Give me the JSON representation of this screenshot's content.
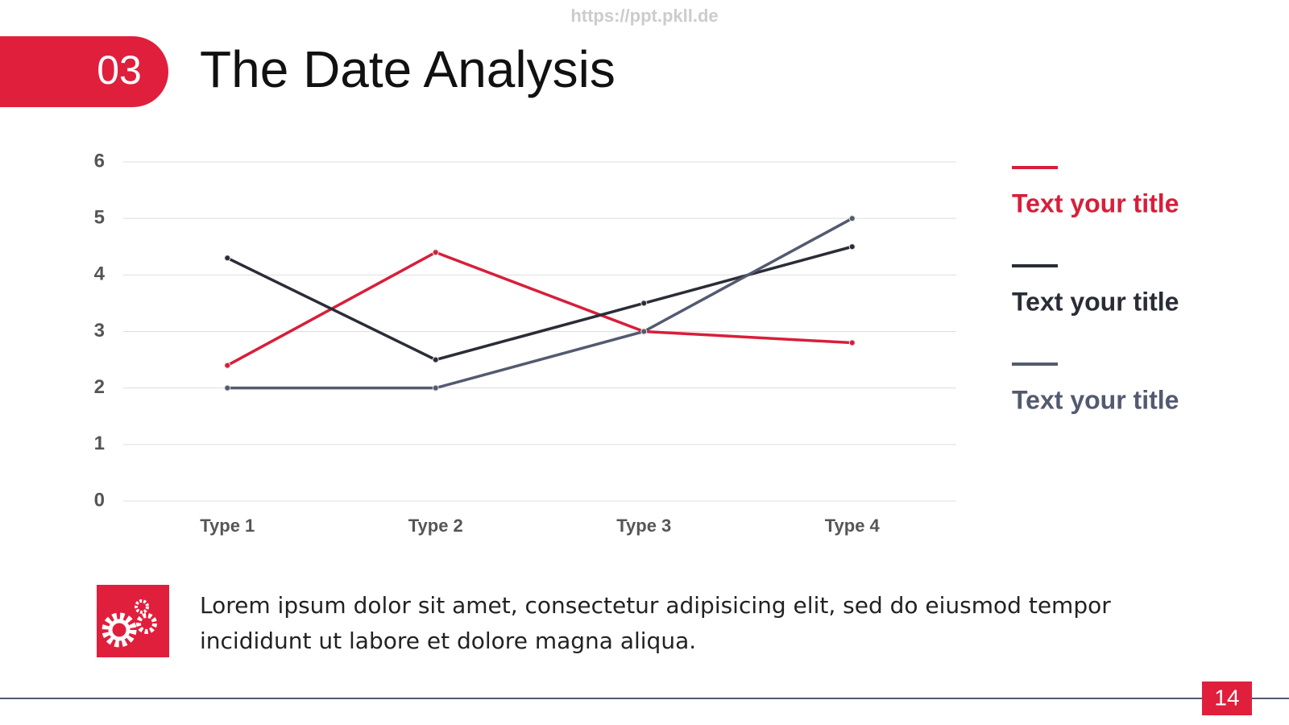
{
  "header": {
    "watermark": "https://ppt.pkll.de",
    "number": "03",
    "title": "The Date Analysis"
  },
  "chart_data": {
    "type": "line",
    "categories": [
      "Type 1",
      "Type 2",
      "Type 3",
      "Type 4"
    ],
    "series": [
      {
        "name": "Text your title",
        "color": "#d81e3a",
        "values": [
          2.4,
          4.4,
          3.0,
          2.8
        ]
      },
      {
        "name": "Text your title",
        "color": "#2a2d36",
        "values": [
          4.3,
          2.5,
          3.5,
          4.5
        ]
      },
      {
        "name": "Text your title",
        "color": "#535a70",
        "values": [
          2,
          2,
          3,
          5
        ]
      }
    ],
    "ylim": [
      0,
      6
    ],
    "yticks": [
      0,
      1,
      2,
      3,
      4,
      5,
      6
    ],
    "grid": true,
    "legend": "right"
  },
  "body": {
    "text": "Lorem ipsum dolor sit amet, consectetur adipisicing elit, sed do eiusmod tempor incididunt ut labore et dolore magna aliqua."
  },
  "footer": {
    "page": "14"
  }
}
